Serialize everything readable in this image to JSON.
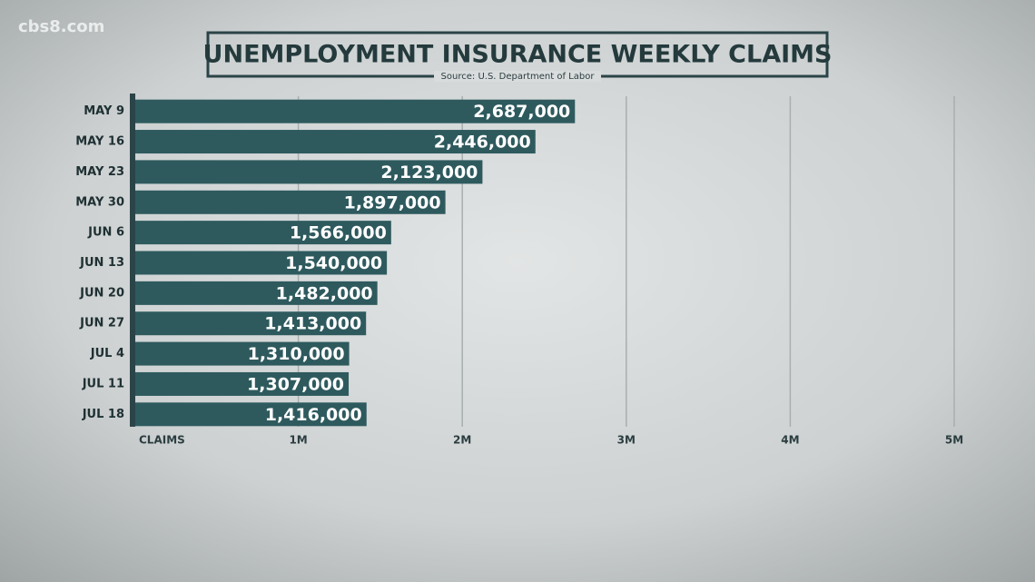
{
  "chart_data": {
    "type": "bar",
    "orientation": "horizontal",
    "watermark": "cbs8.com",
    "title": "UNEMPLOYMENT INSURANCE WEEKLY CLAIMS",
    "subtitle": "Source: U.S. Department of Labor",
    "x_label": "CLAIMS",
    "categories": [
      "MAY 9",
      "MAY 16",
      "MAY 23",
      "MAY 30",
      "JUN 6",
      "JUN 13",
      "JUN 20",
      "JUN 27",
      "JUL 4",
      "JUL 11",
      "JUL 18"
    ],
    "values": [
      2687000,
      2446000,
      2123000,
      1897000,
      1566000,
      1540000,
      1482000,
      1413000,
      1310000,
      1307000,
      1416000
    ],
    "value_labels": [
      "2,687,000",
      "2,446,000",
      "2,123,000",
      "1,897,000",
      "1,566,000",
      "1,540,000",
      "1,482,000",
      "1,413,000",
      "1,310,000",
      "1,307,000",
      "1,416,000"
    ],
    "color": "#2e5a5e",
    "xlim": [
      0,
      5000000
    ],
    "xticks": [
      {
        "value": 1000000,
        "label": "1M"
      },
      {
        "value": 2000000,
        "label": "2M"
      },
      {
        "value": 3000000,
        "label": "3M"
      },
      {
        "value": 4000000,
        "label": "4M"
      },
      {
        "value": 5000000,
        "label": "5M"
      }
    ],
    "grid": true
  }
}
